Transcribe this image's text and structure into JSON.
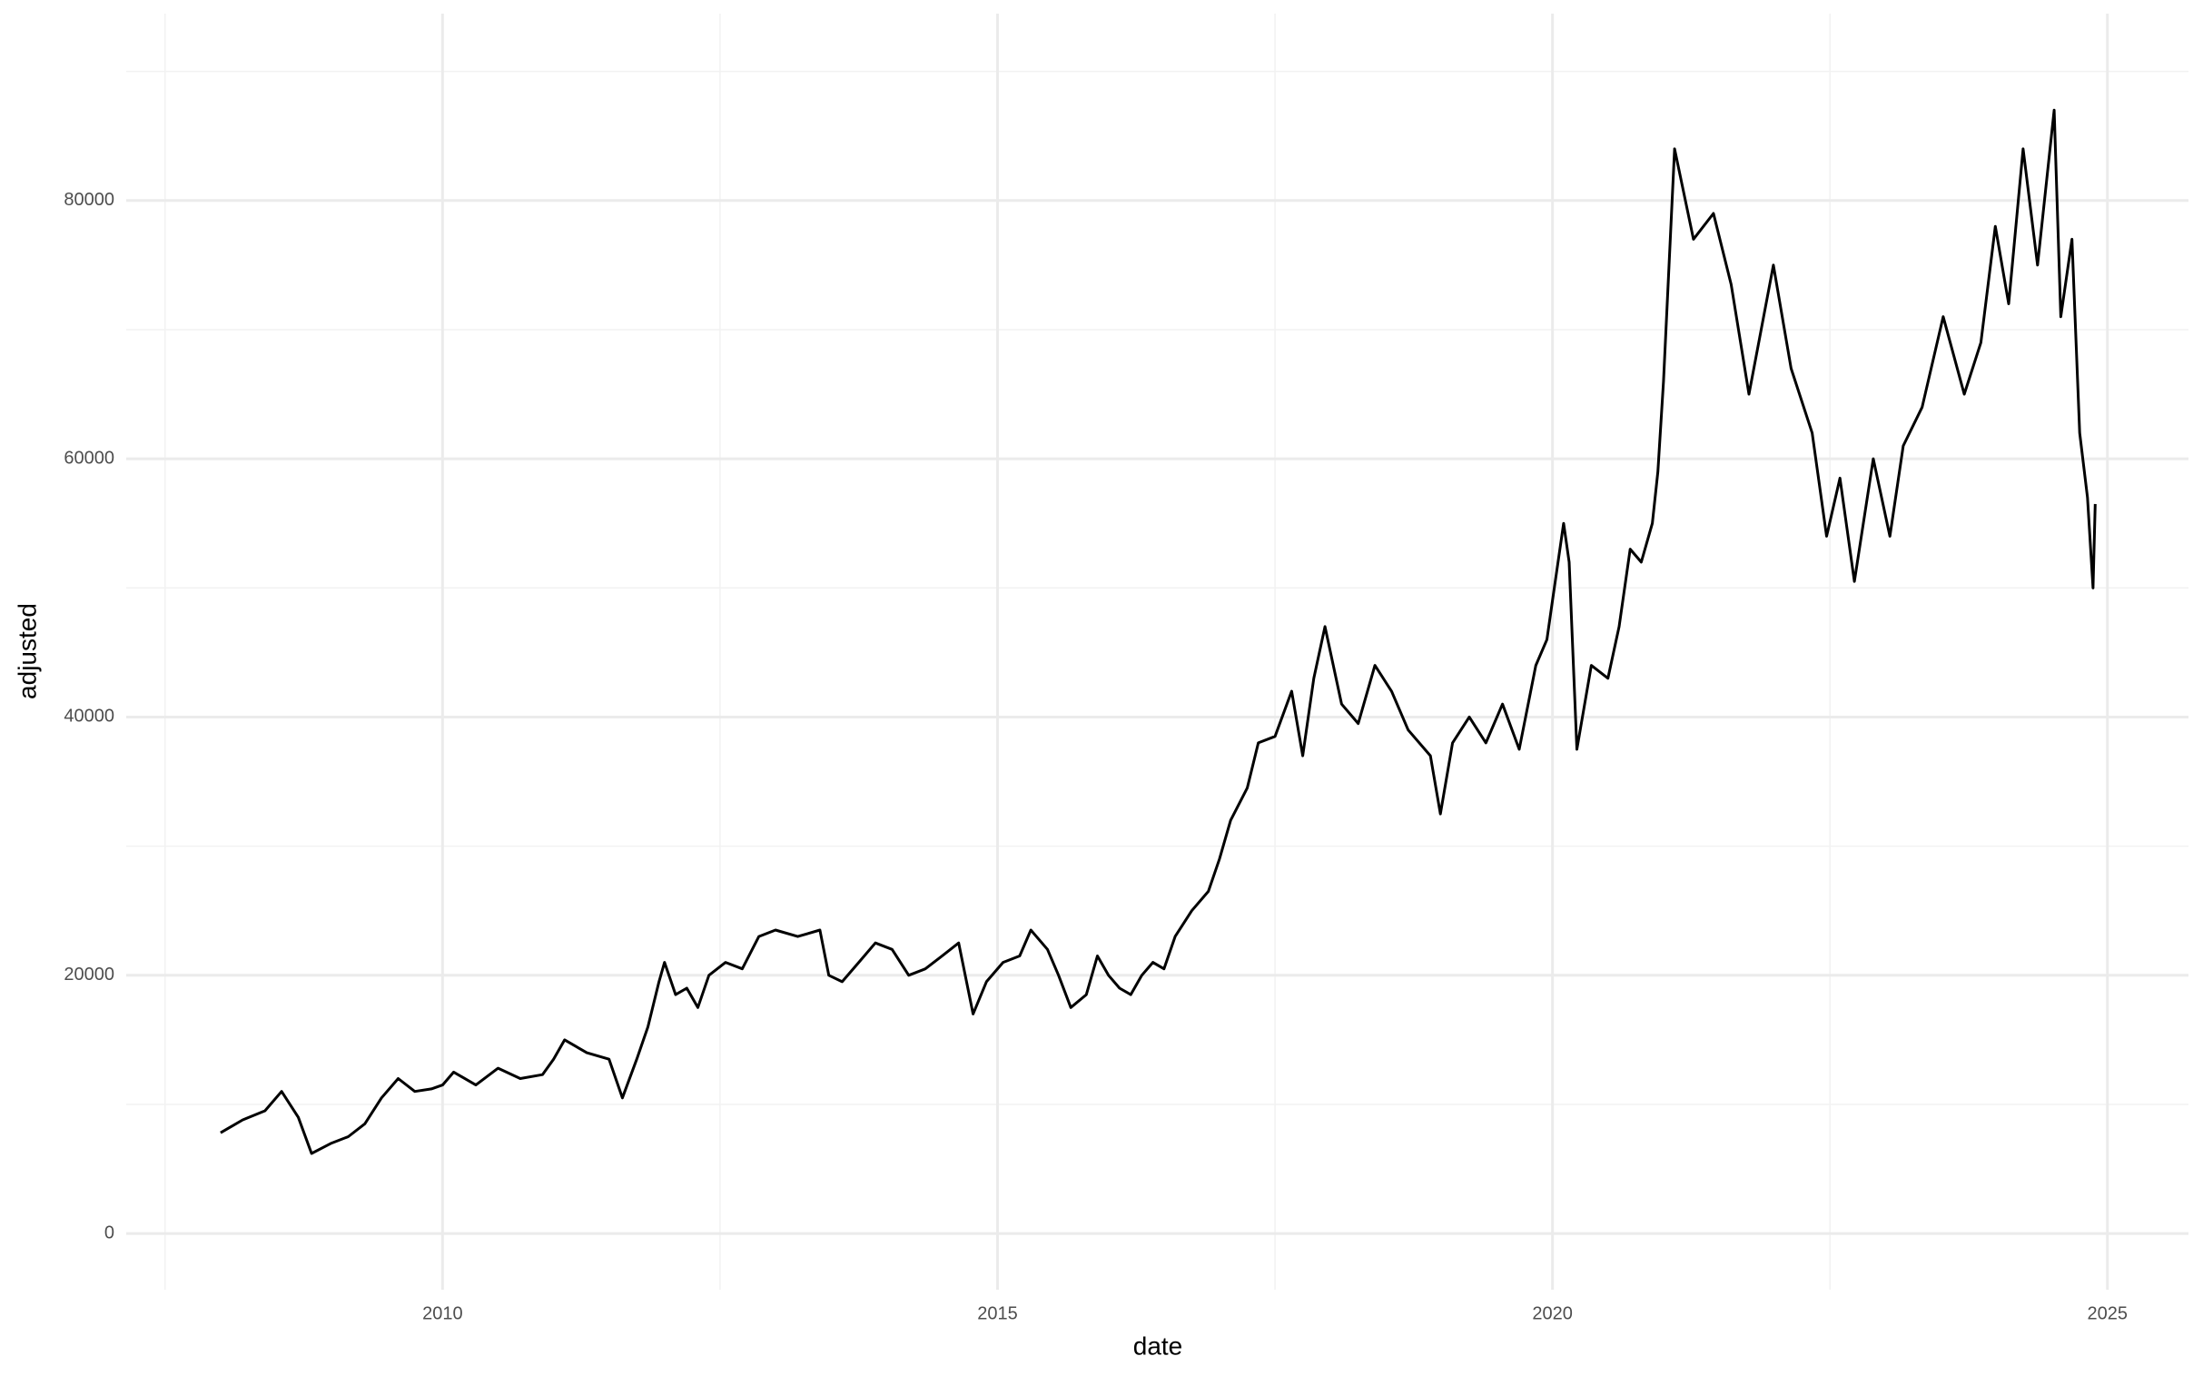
{
  "chart_data": {
    "type": "line",
    "x_label": "date",
    "y_label": "adjusted",
    "x": [
      2008.0,
      2008.2,
      2008.4,
      2008.55,
      2008.7,
      2008.82,
      2009.0,
      2009.15,
      2009.3,
      2009.45,
      2009.6,
      2009.75,
      2009.9,
      2010.0,
      2010.1,
      2010.3,
      2010.5,
      2010.7,
      2010.9,
      2011.0,
      2011.1,
      2011.3,
      2011.5,
      2011.62,
      2011.75,
      2011.85,
      2011.95,
      2012.0,
      2012.1,
      2012.2,
      2012.3,
      2012.4,
      2012.55,
      2012.7,
      2012.85,
      2013.0,
      2013.2,
      2013.4,
      2013.48,
      2013.6,
      2013.75,
      2013.9,
      2014.05,
      2014.2,
      2014.35,
      2014.5,
      2014.65,
      2014.78,
      2014.9,
      2015.05,
      2015.2,
      2015.3,
      2015.45,
      2015.55,
      2015.66,
      2015.8,
      2015.9,
      2016.0,
      2016.1,
      2016.2,
      2016.3,
      2016.4,
      2016.5,
      2016.6,
      2016.75,
      2016.9,
      2017.0,
      2017.1,
      2017.25,
      2017.35,
      2017.5,
      2017.65,
      2017.75,
      2017.85,
      2017.95,
      2018.1,
      2018.25,
      2018.4,
      2018.55,
      2018.7,
      2018.9,
      2018.99,
      2019.1,
      2019.25,
      2019.4,
      2019.55,
      2019.7,
      2019.85,
      2019.95,
      2020.0,
      2020.1,
      2020.15,
      2020.22,
      2020.35,
      2020.5,
      2020.6,
      2020.7,
      2020.8,
      2020.9,
      2020.95,
      2021.0,
      2021.05,
      2021.1,
      2021.27,
      2021.45,
      2021.61,
      2021.77,
      2021.99,
      2022.15,
      2022.34,
      2022.47,
      2022.59,
      2022.72,
      2022.89,
      2023.04,
      2023.16,
      2023.33,
      2023.52,
      2023.71,
      2023.86,
      2023.99,
      2024.11,
      2024.24,
      2024.37,
      2024.52,
      2024.58,
      2024.68,
      2024.75,
      2024.82,
      2024.87,
      2024.89
    ],
    "series": [
      {
        "color": "#000000",
        "values": [
          7800,
          8800,
          9500,
          11000,
          9000,
          6200,
          7000,
          7500,
          8500,
          10500,
          12000,
          11000,
          11200,
          11500,
          12500,
          11500,
          12800,
          12000,
          12300,
          13500,
          15000,
          14000,
          13500,
          10500,
          13500,
          16000,
          19500,
          21000,
          18500,
          19000,
          17500,
          20000,
          21000,
          20500,
          23000,
          23500,
          23000,
          23500,
          20000,
          19500,
          21000,
          22500,
          22000,
          20000,
          20500,
          21500,
          22500,
          17000,
          19500,
          21000,
          21500,
          23500,
          22000,
          20000,
          17500,
          18500,
          21500,
          20000,
          19000,
          18500,
          20000,
          21000,
          20500,
          23000,
          25000,
          26500,
          29000,
          32000,
          34500,
          38000,
          38500,
          42000,
          37000,
          43000,
          47000,
          41000,
          39500,
          44000,
          42000,
          39000,
          37000,
          32500,
          38000,
          40000,
          38000,
          41000,
          37500,
          44000,
          46000,
          49000,
          55000,
          52000,
          37500,
          44000,
          43000,
          47000,
          53000,
          52000,
          55000,
          59000,
          66000,
          75000,
          84000,
          77000,
          79000,
          73500,
          65000,
          75000,
          67000,
          62000,
          54000,
          58500,
          50500,
          60000,
          54000,
          61000,
          64000,
          71000,
          65000,
          69000,
          78000,
          72000,
          84000,
          75000,
          87000,
          71000,
          77000,
          62000,
          57000,
          50000,
          56500
        ]
      }
    ],
    "xlim": [
      2007.15,
      2025.73
    ],
    "ylim": [
      -4354,
      94476
    ],
    "xticks": [
      2010,
      2015,
      2020,
      2025
    ],
    "yticks": [
      0,
      20000,
      40000,
      60000,
      80000
    ],
    "minor_xticks": [
      2007.5,
      2012.5,
      2017.5,
      2022.5
    ],
    "minor_yticks": [
      10000,
      30000,
      50000,
      70000,
      90000
    ],
    "grid": true
  }
}
